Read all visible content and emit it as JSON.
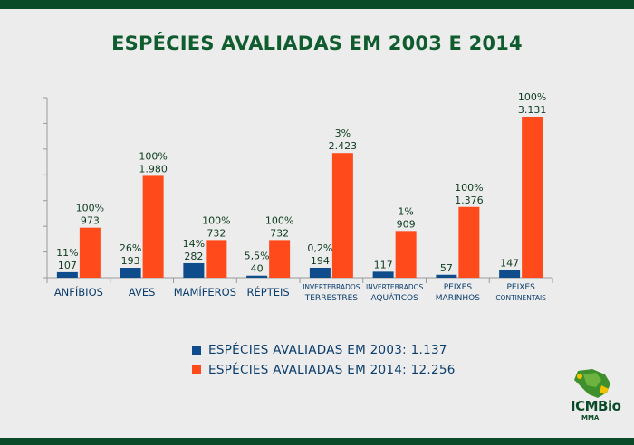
{
  "title": "ESPÉCIES AVALIADAS EM 2003 E 2014",
  "colors": {
    "s2003": "#0f4c8c",
    "s2014": "#ff4a1c",
    "label": "#0c3b1f",
    "cat": "#0a3d6b",
    "brand": "#0b4a28"
  },
  "chart_data": {
    "type": "bar",
    "title": "ESPÉCIES AVALIADAS EM 2003 E 2014",
    "categories": [
      {
        "lines": [
          "ANFÍBIOS"
        ],
        "small": false
      },
      {
        "lines": [
          "AVES"
        ],
        "small": false
      },
      {
        "lines": [
          "MAMÍFEROS"
        ],
        "small": false
      },
      {
        "lines": [
          "RÉPTEIS"
        ],
        "small": false
      },
      {
        "lines": [
          "INVERTEBRADOS",
          "TERRESTRES"
        ],
        "small": true
      },
      {
        "lines": [
          "INVERTEBRADOS",
          "AQUÁTICOS"
        ],
        "small": true
      },
      {
        "lines": [
          "PEIXES",
          "MARINHOS"
        ],
        "small": true
      },
      {
        "lines": [
          "PEIXES",
          "CONTINENTAIS"
        ],
        "small": true
      }
    ],
    "series": [
      {
        "name": "2003",
        "values": [
          107,
          193,
          282,
          40,
          194,
          117,
          57,
          147
        ],
        "value_labels": [
          "107",
          "193",
          "282",
          "40",
          "194",
          "117",
          "57",
          "147"
        ],
        "pct_labels": [
          "11%",
          "26%",
          "14%",
          "5,5%",
          "0,2%",
          "",
          "",
          ""
        ]
      },
      {
        "name": "2014",
        "values": [
          973,
          1980,
          732,
          732,
          2423,
          909,
          1376,
          3131
        ],
        "value_labels": [
          "973",
          "1.980",
          "732",
          "732",
          "2.423",
          "909",
          "1.376",
          "3.131"
        ],
        "pct_labels": [
          "100%",
          "100%",
          "100%",
          "100%",
          "3%",
          "1%",
          "100%",
          "100%"
        ]
      }
    ],
    "ylim": [
      0,
      3500
    ]
  },
  "legend": {
    "item_2003": "ESPÉCIES AVALIADAS EM 2003: 1.137",
    "item_2014": "ESPÉCIES AVALIADAS EM 2014: 12.256"
  },
  "logo": {
    "name": "ICMBio",
    "sub": "MMA"
  }
}
